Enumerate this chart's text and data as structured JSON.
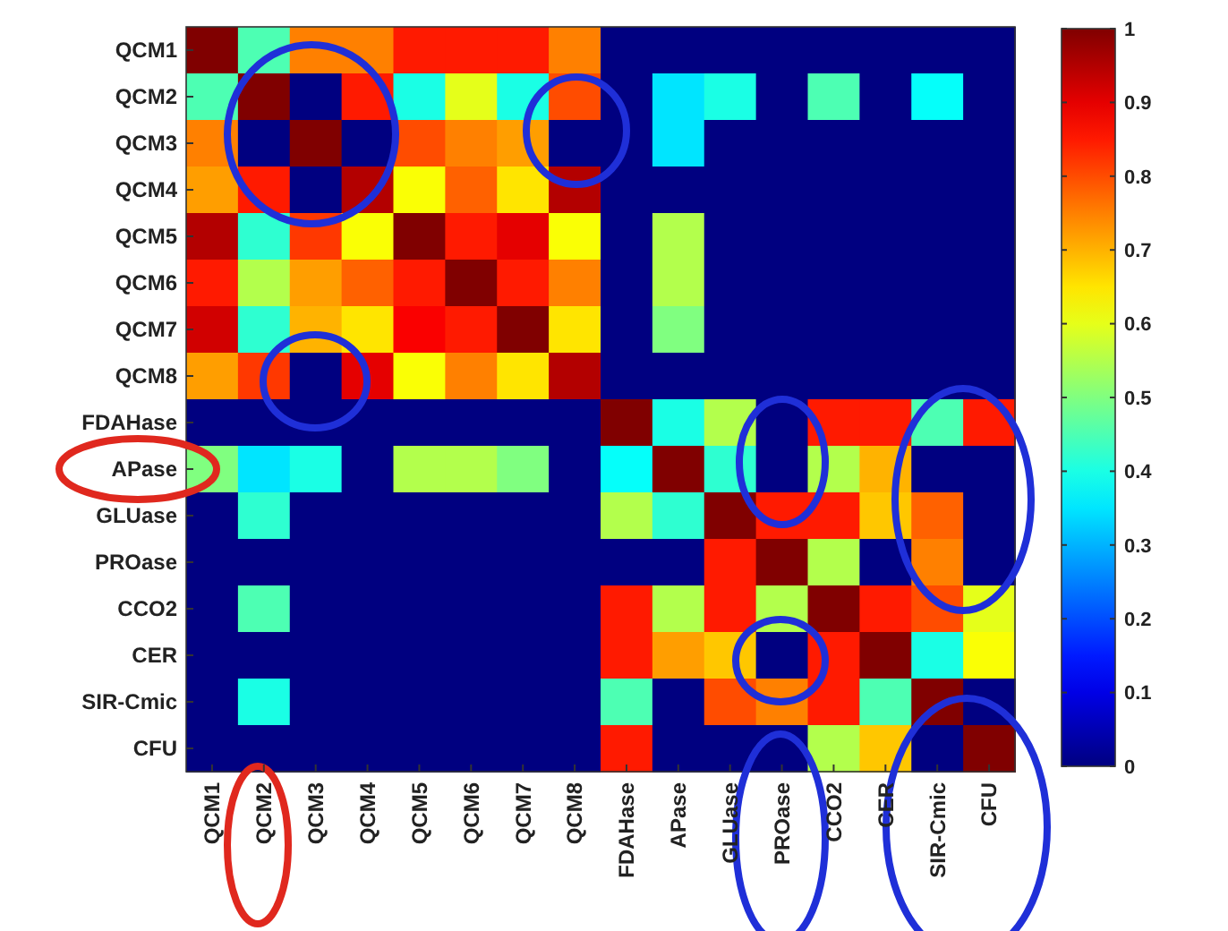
{
  "chart_data": {
    "type": "heatmap",
    "categories": [
      "QCM1",
      "QCM2",
      "QCM3",
      "QCM4",
      "QCM5",
      "QCM6",
      "QCM7",
      "QCM8",
      "FDAHase",
      "APase",
      "GLUase",
      "PROase",
      "CCO2",
      "CER",
      "SIR-Cmic",
      "CFU"
    ],
    "y_categories": [
      "QCM1",
      "QCM2",
      "QCM3",
      "QCM4",
      "QCM5",
      "QCM6",
      "QCM7",
      "QCM8",
      "FDAHase",
      "APase",
      "GLUase",
      "PROase",
      "CCO2",
      "CER",
      "SIR-Cmic",
      "CFU"
    ],
    "cells": [
      [
        1,
        0.45,
        0.75,
        0.75,
        0.85,
        0.85,
        0.85,
        0.75,
        0,
        0,
        0,
        0,
        0,
        0,
        0,
        0
      ],
      [
        0.45,
        1,
        0,
        0.85,
        0.4,
        0.6,
        0.4,
        0.8,
        0,
        0.35,
        0.4,
        0,
        0.45,
        0,
        0.38,
        0
      ],
      [
        0.75,
        0,
        1,
        0,
        0.8,
        0.75,
        0.72,
        0,
        0,
        0.35,
        0,
        0,
        0,
        0,
        0,
        0
      ],
      [
        0.72,
        0.85,
        0,
        0.95,
        0.62,
        0.78,
        0.65,
        0.95,
        0,
        0,
        0,
        0,
        0,
        0,
        0,
        0
      ],
      [
        0.95,
        0.42,
        0.82,
        0.62,
        1,
        0.85,
        0.9,
        0.62,
        0,
        0.55,
        0,
        0,
        0,
        0,
        0,
        0
      ],
      [
        0.85,
        0.55,
        0.72,
        0.78,
        0.85,
        1,
        0.85,
        0.75,
        0,
        0.55,
        0,
        0,
        0,
        0,
        0,
        0
      ],
      [
        0.92,
        0.42,
        0.7,
        0.65,
        0.88,
        0.85,
        1,
        0.65,
        0,
        0.5,
        0,
        0,
        0,
        0,
        0,
        0
      ],
      [
        0.72,
        0.82,
        0,
        0.9,
        0.62,
        0.75,
        0.65,
        0.95,
        0,
        0,
        0,
        0,
        0,
        0,
        0,
        0
      ],
      [
        0,
        0,
        0,
        0,
        0,
        0,
        0,
        0,
        1,
        0.4,
        0.55,
        0,
        0.85,
        0.85,
        0.45,
        0.85
      ],
      [
        0.5,
        0.35,
        0.4,
        0,
        0.55,
        0.55,
        0.5,
        0,
        0.38,
        1,
        0.42,
        0,
        0.55,
        0.7,
        0,
        0
      ],
      [
        0,
        0.42,
        0,
        0,
        0,
        0,
        0,
        0,
        0.55,
        0.42,
        1,
        0.85,
        0.85,
        0.68,
        0.78,
        0
      ],
      [
        0,
        0,
        0,
        0,
        0,
        0,
        0,
        0,
        0,
        0,
        0.85,
        1,
        0.55,
        0,
        0.75,
        0
      ],
      [
        0,
        0.45,
        0,
        0,
        0,
        0,
        0,
        0,
        0.85,
        0.55,
        0.85,
        0.55,
        1,
        0.85,
        0.8,
        0.6
      ],
      [
        0,
        0,
        0,
        0,
        0,
        0,
        0,
        0,
        0.85,
        0.72,
        0.68,
        0,
        0.85,
        1,
        0.4,
        0.62
      ],
      [
        0,
        0.4,
        0,
        0,
        0,
        0,
        0,
        0,
        0.45,
        0,
        0.8,
        0.75,
        0.85,
        0.45,
        1,
        0
      ],
      [
        0,
        0,
        0,
        0,
        0,
        0,
        0,
        0,
        0.85,
        0,
        0,
        0,
        0.55,
        0.68,
        0,
        1
      ]
    ],
    "clim": [
      0,
      1
    ],
    "cticks": [
      0,
      0.1,
      0.2,
      0.3,
      0.4,
      0.5,
      0.6,
      0.7,
      0.8,
      0.9,
      1
    ]
  }
}
